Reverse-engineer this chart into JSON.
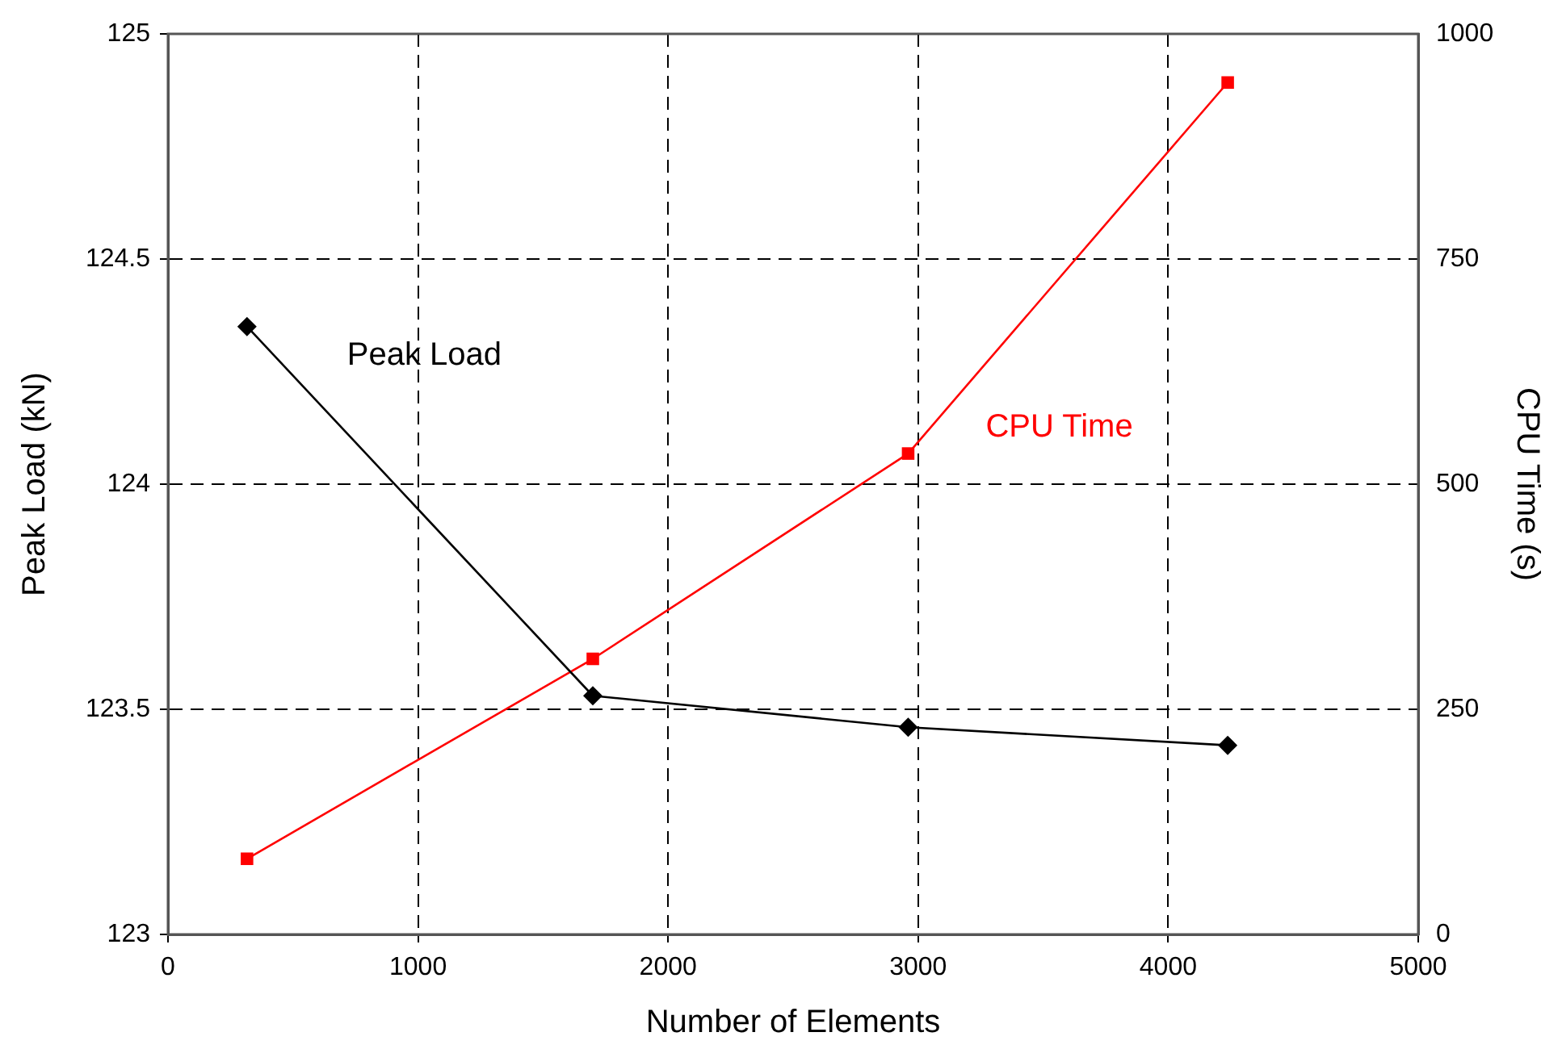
{
  "chart_data": {
    "type": "line",
    "xlabel": "Number of Elements",
    "ylabel": "Peak Load (kN)",
    "y2label": "CPU Time (s)",
    "series": [
      {
        "name": "Peak Load",
        "color": "#000000",
        "marker": "diamond",
        "x": [
          316,
          1699,
          2960,
          4238
        ],
        "values": [
          124.35,
          123.53,
          123.46,
          123.42
        ]
      },
      {
        "name": "CPU Time",
        "color": "#ff0000",
        "marker": "square",
        "axis": "y2",
        "x": [
          316,
          1699,
          2960,
          4238
        ],
        "values": [
          84,
          306,
          534,
          946
        ]
      }
    ],
    "xlim": [
      0,
      5000
    ],
    "xticks": [
      0,
      1000,
      2000,
      3000,
      4000,
      5000
    ],
    "ylim": [
      123,
      125
    ],
    "yticks": [
      123,
      123.5,
      124,
      124.5,
      125
    ],
    "y2lim": [
      0,
      1000
    ],
    "y2ticks": [
      0,
      250,
      500,
      750,
      1000
    ],
    "grid": true,
    "legend": false,
    "line_style": "solid"
  }
}
